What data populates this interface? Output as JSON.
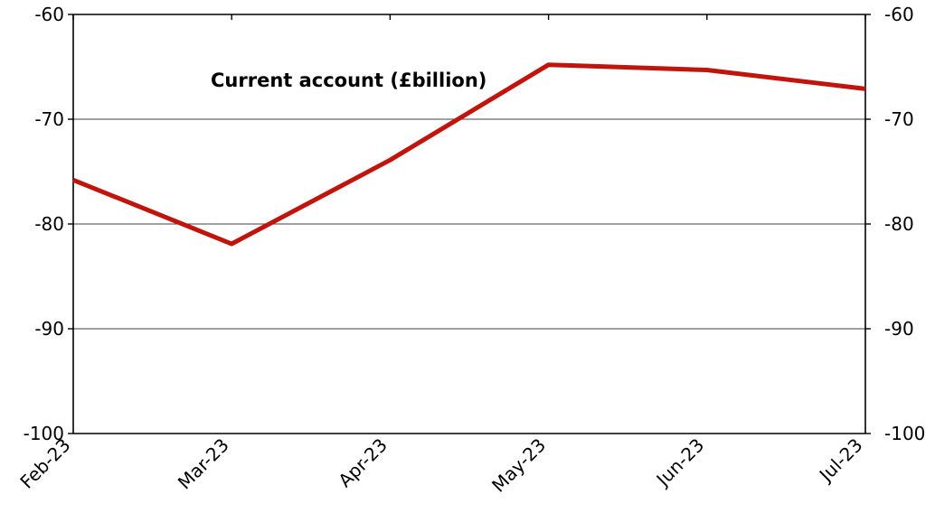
{
  "chart_data": {
    "type": "line",
    "title": "Current account (£billion)",
    "xlabel": "",
    "ylabel": "",
    "categories": [
      "Feb-23",
      "Mar-23",
      "Apr-23",
      "May-23",
      "Jun-23",
      "Jul-23"
    ],
    "series": [
      {
        "values": [
          -75.8,
          -81.9,
          -73.9,
          -64.8,
          -65.3,
          -67.1
        ],
        "color": "#c0140c"
      }
    ],
    "ylim": [
      -100,
      -60
    ],
    "yticks": [
      -60,
      -70,
      -80,
      -90,
      -100
    ],
    "secondary_yaxis": true,
    "grid": true,
    "legend": "none"
  }
}
